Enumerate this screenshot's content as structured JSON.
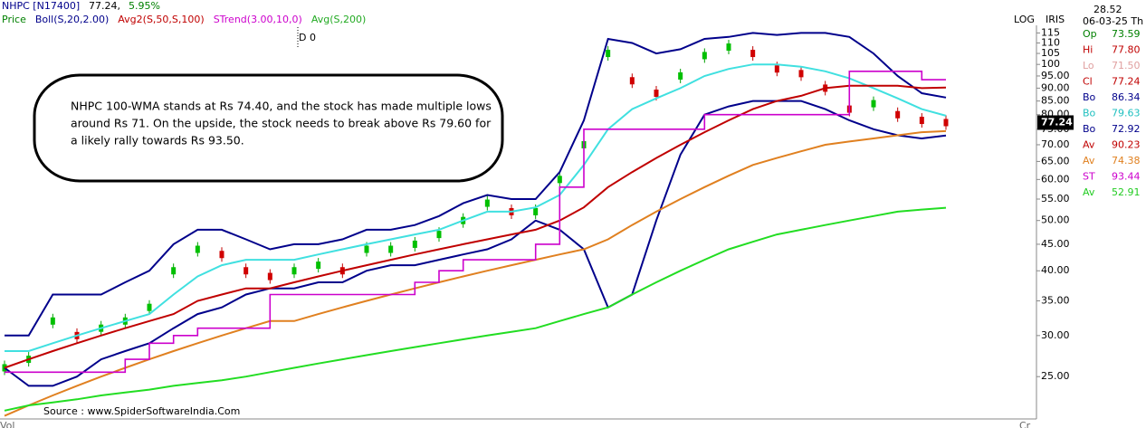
{
  "chart_data": {
    "type": "line",
    "symbol": "NHPC [N17400]",
    "last_price": "77.24,",
    "change": "5.95%",
    "legend": [
      {
        "name": "Price",
        "color": "#008000"
      },
      {
        "name": "Boll(S,20,2.00)",
        "color": "#00008b"
      },
      {
        "name": "Avg2(S,50,S,100)",
        "color": "#c00000"
      },
      {
        "name": "STrend(3.00,10,0)",
        "color": "#cc00cc"
      },
      {
        "name": "Avg(S,200)",
        "color": "#22aa22"
      }
    ],
    "cursor_label": "D 0",
    "annotation": [
      "NHPC 100-WMA stands at Rs 74.40, and the stock has made multiple lows",
      "around Rs 71. On the upside, the stock needs to break above Rs 79.60 for",
      "a likely rally towards Rs 93.50."
    ],
    "source": "Source : www.SpiderSoftwareIndia.Com",
    "bottom_left": "Vol",
    "bottom_right": "Cr",
    "log_label": "LOG",
    "iris_label": "IRIS",
    "iris_value": "28.52",
    "date": "06-03-25 Th",
    "readout": [
      {
        "label": "Op",
        "value": 73.59,
        "color": "#008000"
      },
      {
        "label": "Hi",
        "value": 77.8,
        "value_label": "77.80",
        "color": "#c00000"
      },
      {
        "label": "Lo",
        "value": 71.5,
        "value_label": "71.50",
        "color": "#e0a0a0"
      },
      {
        "label": "Cl",
        "value": 77.24,
        "color": "#c00000"
      },
      {
        "label": "Bo",
        "value": 86.34,
        "color": "#00008b"
      },
      {
        "label": "Bo",
        "value": 79.63,
        "color": "#20c0c0"
      },
      {
        "label": "Bo",
        "value": 72.92,
        "color": "#00008b"
      },
      {
        "label": "Av",
        "value": 90.23,
        "color": "#c00000"
      },
      {
        "label": "Av",
        "value": 74.38,
        "color": "#e08020"
      },
      {
        "label": "ST",
        "value": 93.44,
        "color": "#cc00cc"
      },
      {
        "label": "Av",
        "value": 52.91,
        "color": "#22cc22"
      }
    ],
    "categories": [
      null,
      null,
      null,
      null,
      null,
      null,
      null,
      null,
      null,
      null,
      null,
      null,
      null,
      null,
      null,
      null,
      null,
      null,
      null,
      null,
      null,
      null,
      null,
      null,
      null,
      null,
      null,
      null,
      null,
      null,
      null,
      null,
      null,
      null,
      null,
      null,
      null,
      null,
      null,
      null
    ],
    "series": [
      {
        "kind": "price",
        "color": "#00c000",
        "values": [
          26,
          27,
          32,
          30,
          31,
          32,
          34,
          40,
          44,
          43,
          40,
          39,
          40,
          41,
          40,
          44,
          44,
          45,
          47,
          50,
          54,
          52,
          52,
          60,
          70,
          105,
          93,
          88,
          95,
          104,
          108,
          105,
          98,
          96,
          90,
          82,
          84,
          80,
          78,
          77.24
        ]
      },
      {
        "color": "#00008b",
        "values": [
          30,
          30,
          36,
          36,
          36,
          38,
          40,
          45,
          48,
          48,
          46,
          44,
          45,
          45,
          46,
          48,
          48,
          49,
          51,
          54,
          56,
          55,
          55,
          62,
          78,
          112,
          110,
          105,
          107,
          112,
          113,
          115,
          114,
          115,
          115,
          113,
          105,
          95,
          88,
          86.34
        ]
      },
      {
        "color": "#40e0e0",
        "values": [
          28,
          28,
          29,
          30,
          31,
          32,
          33,
          36,
          39,
          41,
          42,
          42,
          42,
          43,
          44,
          45,
          46,
          47,
          48,
          50,
          52,
          52,
          53,
          56,
          64,
          75,
          82,
          86,
          90,
          95,
          98,
          100,
          100,
          99,
          97,
          94,
          90,
          86,
          82,
          79.63
        ]
      },
      {
        "color": "#00008b",
        "values": [
          26,
          24,
          24,
          25,
          27,
          28,
          29,
          31,
          33,
          34,
          36,
          37,
          37,
          38,
          38,
          40,
          41,
          41,
          42,
          43,
          44,
          46,
          50,
          48,
          44,
          34,
          36,
          50,
          67,
          80,
          83,
          85,
          85,
          85,
          82,
          78,
          75,
          73,
          72,
          72.92
        ]
      },
      {
        "color": "#c00000",
        "values": [
          26,
          27,
          28,
          29,
          30,
          31,
          32,
          33,
          35,
          36,
          37,
          37,
          38,
          39,
          40,
          41,
          42,
          43,
          44,
          45,
          46,
          47,
          48,
          50,
          53,
          58,
          62,
          66,
          70,
          74,
          78,
          82,
          85,
          87,
          90,
          91,
          91,
          91,
          90,
          90.23
        ]
      },
      {
        "color": "#e08020",
        "values": [
          21,
          22,
          23,
          24,
          25,
          26,
          27,
          28,
          29,
          30,
          31,
          32,
          32,
          33,
          34,
          35,
          36,
          37,
          38,
          39,
          40,
          41,
          42,
          43,
          44,
          46,
          49,
          52,
          55,
          58,
          61,
          64,
          66,
          68,
          70,
          71,
          72,
          73,
          74,
          74.38
        ]
      },
      {
        "color": "#22dd22",
        "values": [
          21.5,
          22,
          22.3,
          22.6,
          23,
          23.3,
          23.6,
          24,
          24.3,
          24.6,
          25,
          25.5,
          26,
          26.5,
          27,
          27.5,
          28,
          28.5,
          29,
          29.5,
          30,
          30.5,
          31,
          32,
          33,
          34,
          36,
          38,
          40,
          42,
          44,
          45.5,
          47,
          48,
          49,
          50,
          51,
          52,
          52.5,
          52.91
        ]
      },
      {
        "kind": "step",
        "color": "#cc00cc",
        "values": [
          25.5,
          25.5,
          25.5,
          25.5,
          25.5,
          27,
          29,
          30,
          31,
          31,
          31,
          36,
          36,
          36,
          36,
          36,
          36,
          38,
          40,
          42,
          42,
          42,
          45,
          58,
          75,
          75,
          75,
          75,
          75,
          80,
          80,
          80,
          80,
          80,
          80,
          97,
          97,
          97,
          93.44,
          93.44
        ]
      }
    ],
    "log_scale": true,
    "ylim": [
      20.8,
      118
    ],
    "yticks": [
      115,
      110,
      105,
      100,
      {
        "value": 95,
        "label": "95.00"
      },
      {
        "value": 90,
        "label": "90.00"
      },
      {
        "value": 85,
        "label": "85.00"
      },
      {
        "value": 80,
        "label": "80.00"
      },
      {
        "value": 75,
        "label": "75.00"
      },
      {
        "value": 70,
        "label": "70.00"
      },
      {
        "value": 65,
        "label": "65.00"
      },
      {
        "value": 60,
        "label": "60.00"
      },
      {
        "value": 55,
        "label": "55.00"
      },
      {
        "value": 50,
        "label": "50.00"
      },
      {
        "value": 45,
        "label": "45.00"
      },
      {
        "value": 40,
        "label": "40.00"
      },
      {
        "value": 35,
        "label": "35.00"
      },
      {
        "value": 30,
        "label": "30.00"
      },
      {
        "value": 25,
        "label": "25.00"
      }
    ]
  }
}
